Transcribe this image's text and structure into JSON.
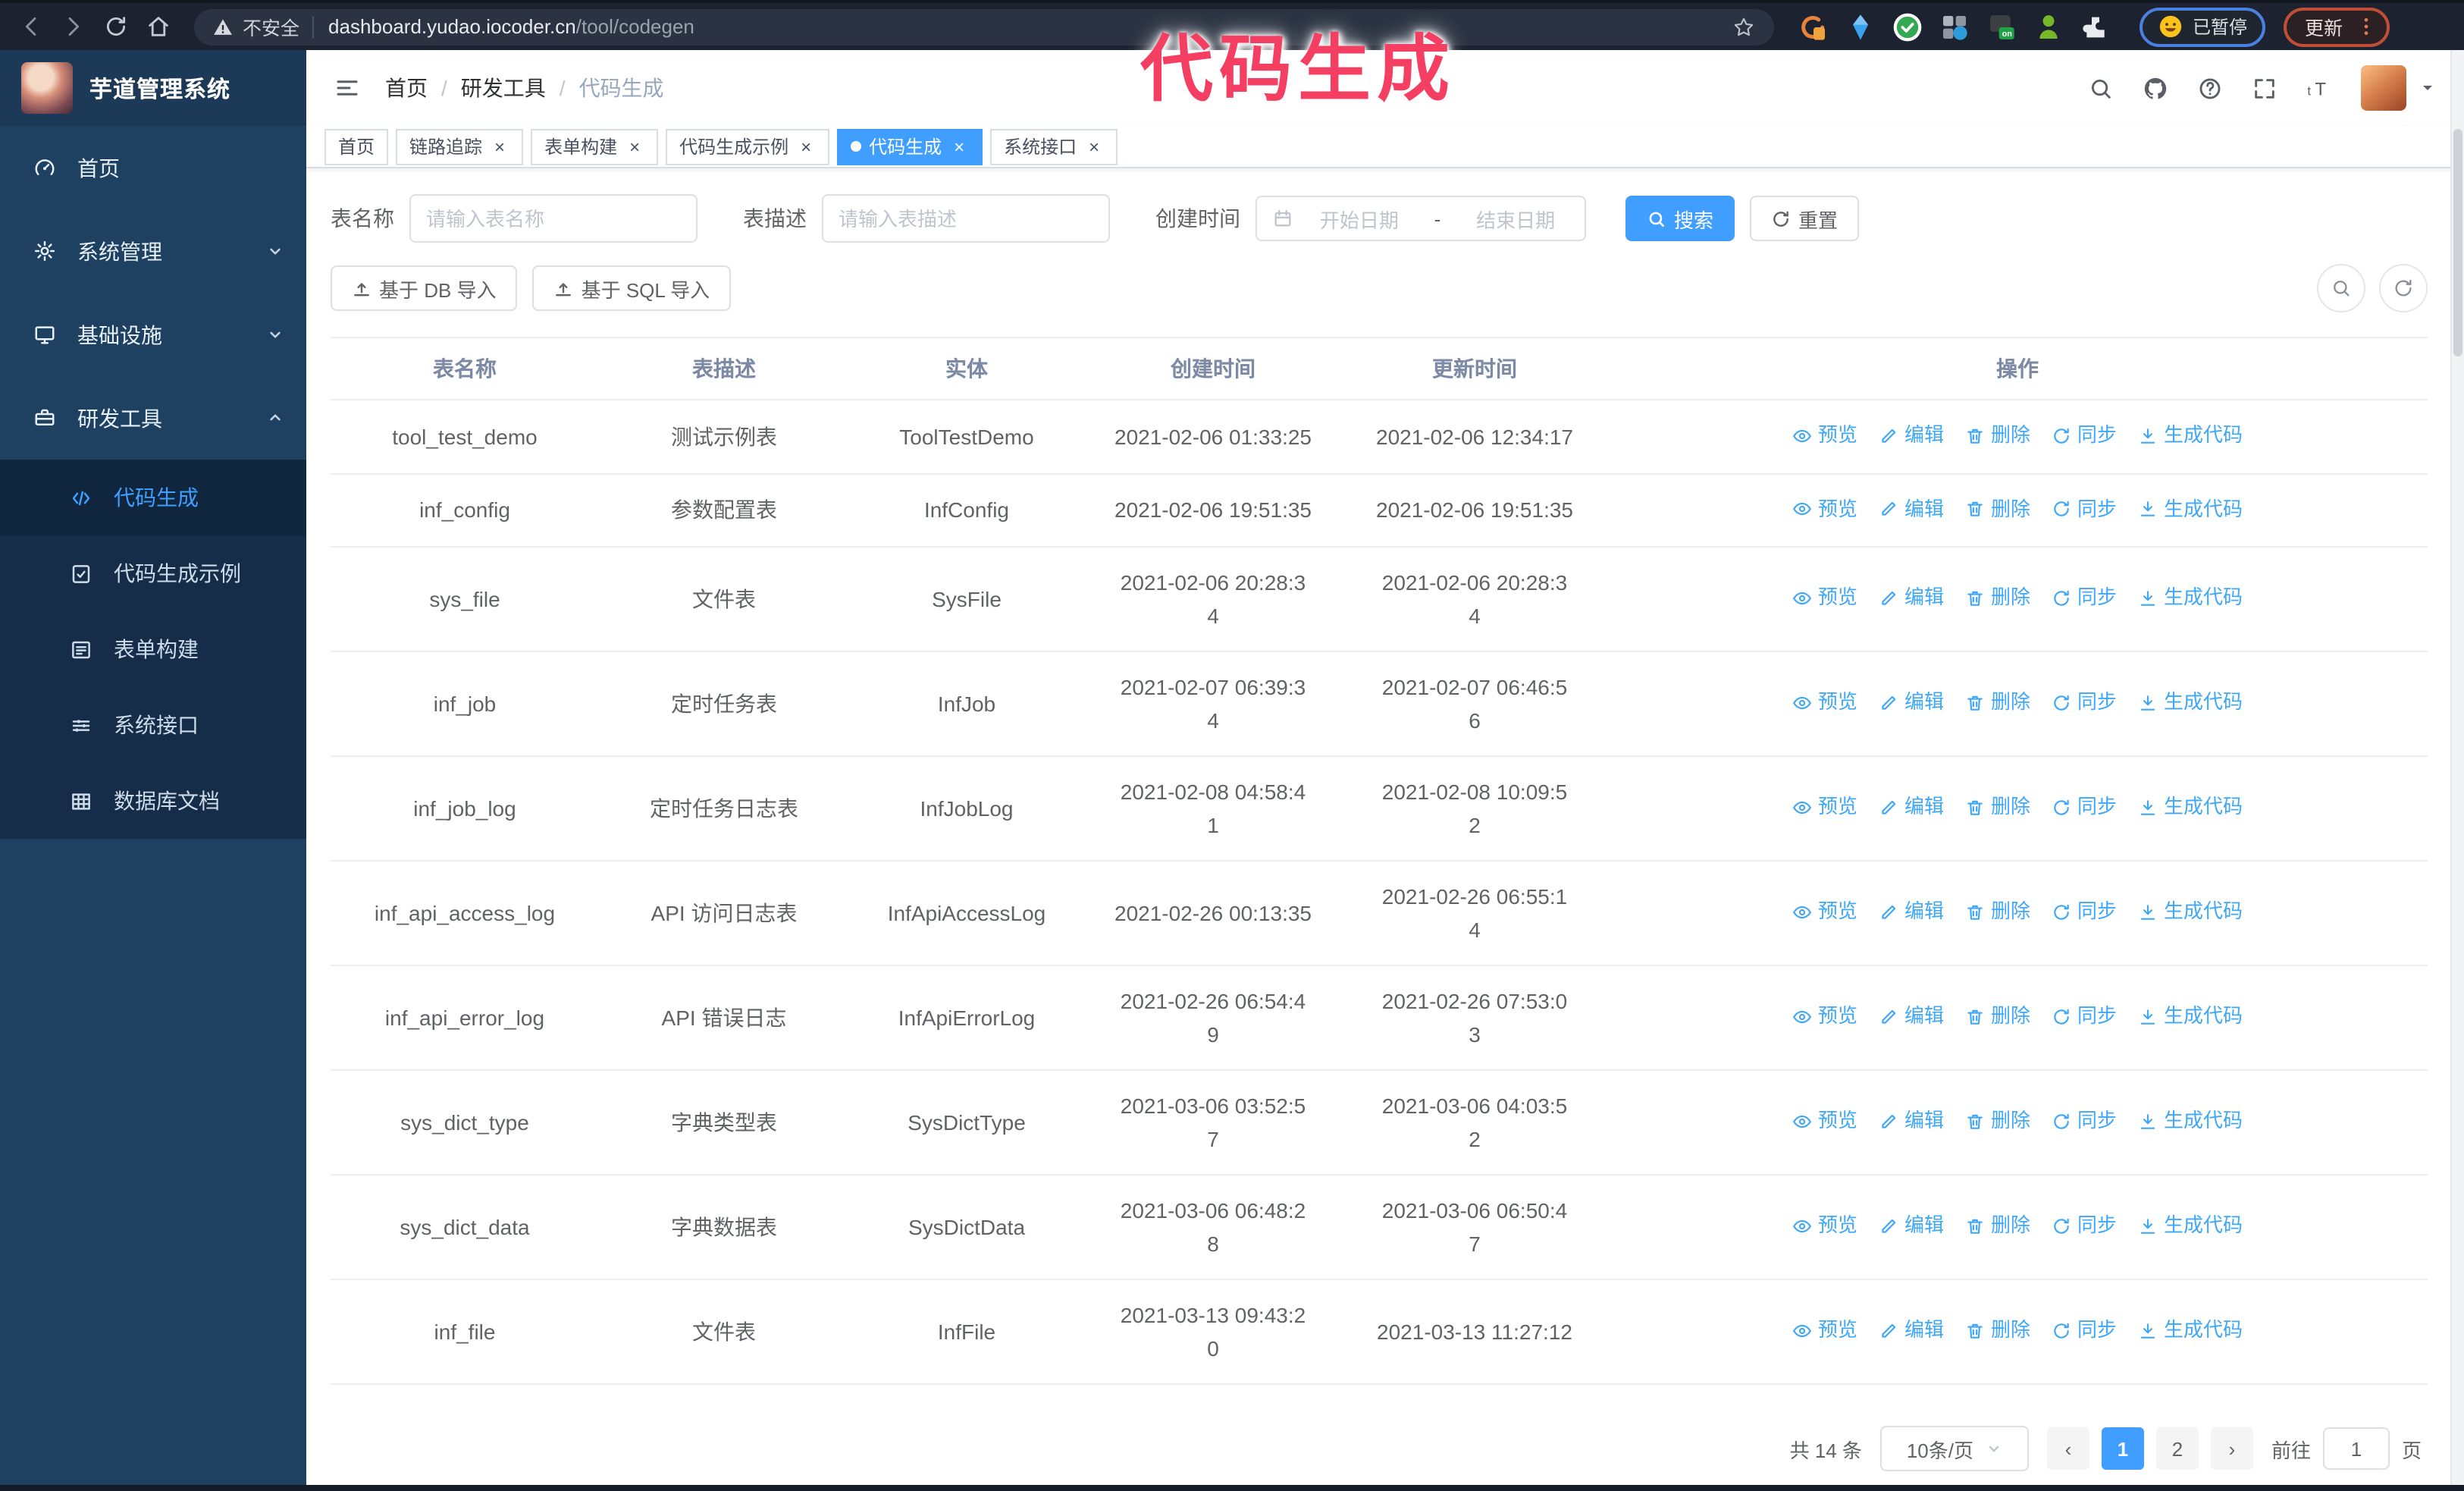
{
  "overlay": {
    "annotation": "代码生成"
  },
  "browser": {
    "security_label": "不安全",
    "url_host": "dashboard.yudao.iocoder.cn",
    "url_path": "/tool/codegen",
    "profile_status": "已暂停",
    "update_label": "更新"
  },
  "app": {
    "title": "芋道管理系统",
    "breadcrumb": [
      "首页",
      "研发工具",
      "代码生成"
    ],
    "breadcrumb_separator": "/"
  },
  "sidebar": {
    "items": [
      {
        "label": "首页",
        "icon": "dashboard",
        "expandable": false,
        "expanded": false
      },
      {
        "label": "系统管理",
        "icon": "gear",
        "expandable": true,
        "expanded": false
      },
      {
        "label": "基础设施",
        "icon": "monitor",
        "expandable": true,
        "expanded": false
      },
      {
        "label": "研发工具",
        "icon": "toolbox",
        "expandable": true,
        "expanded": true
      }
    ],
    "submenu": [
      {
        "label": "代码生成",
        "icon": "code",
        "active": true
      },
      {
        "label": "代码生成示例",
        "icon": "example",
        "active": false
      },
      {
        "label": "表单构建",
        "icon": "form",
        "active": false
      },
      {
        "label": "系统接口",
        "icon": "api",
        "active": false
      },
      {
        "label": "数据库文档",
        "icon": "dbdoc",
        "active": false
      }
    ]
  },
  "tabs": {
    "close_glyph": "×",
    "items": [
      {
        "label": "首页",
        "closable": false,
        "active": false
      },
      {
        "label": "链路追踪",
        "closable": true,
        "active": false
      },
      {
        "label": "表单构建",
        "closable": true,
        "active": false
      },
      {
        "label": "代码生成示例",
        "closable": true,
        "active": false
      },
      {
        "label": "代码生成",
        "closable": true,
        "active": true
      },
      {
        "label": "系统接口",
        "closable": true,
        "active": false
      }
    ]
  },
  "filters": {
    "table_name_label": "表名称",
    "table_name_placeholder": "请输入表名称",
    "table_desc_label": "表描述",
    "table_desc_placeholder": "请输入表描述",
    "create_time_label": "创建时间",
    "date_start_placeholder": "开始日期",
    "date_separator": "-",
    "date_end_placeholder": "结束日期",
    "search_label": "搜索",
    "reset_label": "重置"
  },
  "toolbar": {
    "import_db_label": "基于 DB 导入",
    "import_sql_label": "基于 SQL 导入"
  },
  "table": {
    "columns": [
      "表名称",
      "表描述",
      "实体",
      "创建时间",
      "更新时间",
      "操作"
    ],
    "action_labels": [
      "预览",
      "编辑",
      "删除",
      "同步",
      "生成代码"
    ],
    "rows": [
      {
        "name": "tool_test_demo",
        "desc": "测试示例表",
        "entity": "ToolTestDemo",
        "created": "2021-02-06 01:33:25",
        "created_wrap": false,
        "updated": "2021-02-06 12:34:17",
        "updated_wrap": false
      },
      {
        "name": "inf_config",
        "desc": "参数配置表",
        "entity": "InfConfig",
        "created": "2021-02-06 19:51:35",
        "created_wrap": false,
        "updated": "2021-02-06 19:51:35",
        "updated_wrap": false
      },
      {
        "name": "sys_file",
        "desc": "文件表",
        "entity": "SysFile",
        "created": "2021-02-06 20:28:34",
        "created_wrap": true,
        "updated": "2021-02-06 20:28:34",
        "updated_wrap": true
      },
      {
        "name": "inf_job",
        "desc": "定时任务表",
        "entity": "InfJob",
        "created": "2021-02-07 06:39:34",
        "created_wrap": true,
        "updated": "2021-02-07 06:46:56",
        "updated_wrap": true
      },
      {
        "name": "inf_job_log",
        "desc": "定时任务日志表",
        "entity": "InfJobLog",
        "created": "2021-02-08 04:58:41",
        "created_wrap": true,
        "updated": "2021-02-08 10:09:52",
        "updated_wrap": true
      },
      {
        "name": "inf_api_access_log",
        "desc": "API 访问日志表",
        "entity": "InfApiAccessLog",
        "created": "2021-02-26 00:13:35",
        "created_wrap": false,
        "updated": "2021-02-26 06:55:14",
        "updated_wrap": true
      },
      {
        "name": "inf_api_error_log",
        "desc": "API 错误日志",
        "entity": "InfApiErrorLog",
        "created": "2021-02-26 06:54:49",
        "created_wrap": true,
        "updated": "2021-02-26 07:53:03",
        "updated_wrap": true
      },
      {
        "name": "sys_dict_type",
        "desc": "字典类型表",
        "entity": "SysDictType",
        "created": "2021-03-06 03:52:57",
        "created_wrap": true,
        "updated": "2021-03-06 04:03:52",
        "updated_wrap": true
      },
      {
        "name": "sys_dict_data",
        "desc": "字典数据表",
        "entity": "SysDictData",
        "created": "2021-03-06 06:48:28",
        "created_wrap": true,
        "updated": "2021-03-06 06:50:47",
        "updated_wrap": true
      },
      {
        "name": "inf_file",
        "desc": "文件表",
        "entity": "InfFile",
        "created": "2021-03-13 09:43:20",
        "created_wrap": true,
        "updated": "2021-03-13 11:27:12",
        "updated_wrap": false
      }
    ]
  },
  "pagination": {
    "total_label": "共 14 条",
    "page_size_label": "10条/页",
    "prev_glyph": "‹",
    "next_glyph": "›",
    "pages": [
      "1",
      "2"
    ],
    "active_page": "1",
    "goto_label": "前往",
    "goto_value": "1",
    "goto_suffix": "页"
  },
  "colors": {
    "primary": "#409eff",
    "link": "#3ea7f8",
    "sidebar_bg": "#1e4161",
    "submenu_bg": "#152d49",
    "annotation": "#f43f63"
  }
}
